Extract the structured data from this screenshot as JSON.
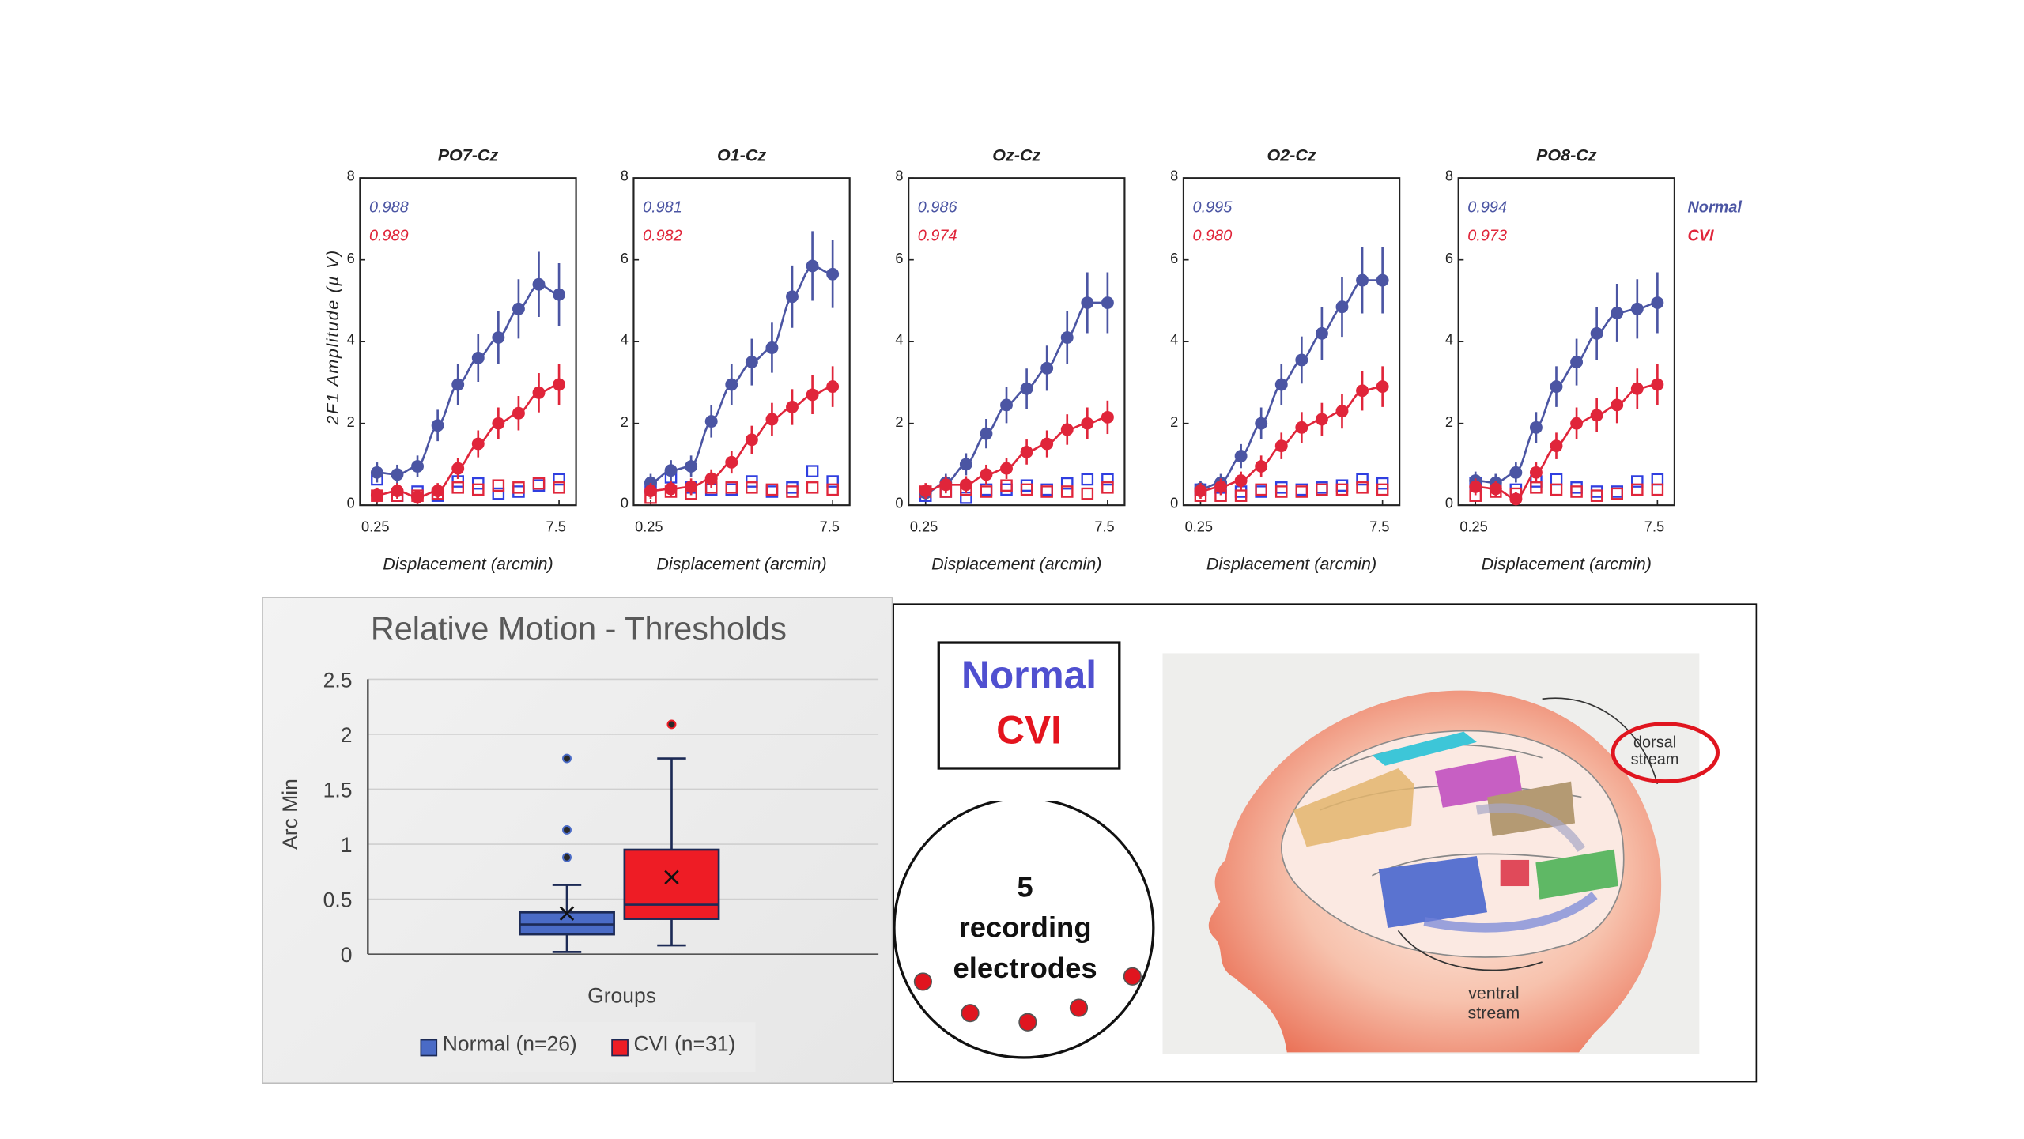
{
  "colors": {
    "normal": "#4b55a3",
    "cvi": "#e0253a",
    "normal_box": "#4a6bc6",
    "cvi_box": "#ee1c25"
  },
  "ylabel": "2F1 Amplitude (µ V)",
  "chart_data": [
    {
      "type": "line",
      "title": "PO7-Cz",
      "xlabel": "Displacement (arcmin)",
      "ylabel": "2F1 Amplitude (µ V)",
      "x_tick_labels": [
        "0.25",
        "7.5"
      ],
      "ylim": [
        0,
        8
      ],
      "y_ticks": [
        "0",
        "2",
        "4",
        "6",
        "8"
      ],
      "x_index": [
        1,
        2,
        3,
        4,
        5,
        6,
        7,
        8,
        9,
        10,
        11
      ],
      "r2": {
        "Normal": "0.988",
        "CVI": "0.989"
      },
      "series": [
        {
          "name": "Normal",
          "values": [
            0.8,
            0.75,
            0.95,
            1.95,
            2.95,
            3.6,
            4.1,
            4.8,
            5.4,
            5.15,
            null
          ]
        },
        {
          "name": "CVI",
          "values": [
            0.25,
            0.35,
            0.2,
            0.35,
            0.9,
            1.5,
            2.0,
            2.25,
            2.75,
            2.95,
            null
          ]
        },
        {
          "name": "Normal noise",
          "values": [
            0.6,
            0.2,
            0.3,
            0.2,
            0.55,
            0.5,
            0.25,
            0.3,
            0.45,
            0.6,
            null
          ]
        },
        {
          "name": "CVI noise",
          "values": [
            0.2,
            0.2,
            0.2,
            0.25,
            0.4,
            0.35,
            0.45,
            0.4,
            0.5,
            0.4,
            null
          ]
        }
      ]
    },
    {
      "type": "line",
      "title": "O1-Cz",
      "xlabel": "Displacement (arcmin)",
      "x_tick_labels": [
        "0.25",
        "7.5"
      ],
      "ylim": [
        0,
        8
      ],
      "y_ticks": [
        "0",
        "2",
        "4",
        "6",
        "8"
      ],
      "r2": {
        "Normal": "0.981",
        "CVI": "0.982"
      },
      "series": [
        {
          "name": "Normal",
          "values": [
            0.55,
            0.85,
            0.95,
            2.05,
            2.95,
            3.5,
            3.85,
            5.1,
            5.85,
            5.65
          ]
        },
        {
          "name": "CVI",
          "values": [
            0.35,
            0.4,
            0.45,
            0.65,
            1.05,
            1.6,
            2.1,
            2.4,
            2.7,
            2.9
          ]
        },
        {
          "name": "Normal noise",
          "values": [
            0.4,
            0.65,
            0.4,
            0.35,
            0.35,
            0.55,
            0.3,
            0.4,
            0.8,
            0.55
          ]
        },
        {
          "name": "CVI noise",
          "values": [
            0.15,
            0.3,
            0.25,
            0.4,
            0.4,
            0.4,
            0.35,
            0.3,
            0.4,
            0.35
          ]
        }
      ]
    },
    {
      "type": "line",
      "title": "Oz-Cz",
      "xlabel": "Displacement (arcmin)",
      "x_tick_labels": [
        "0.25",
        "7.5"
      ],
      "ylim": [
        0,
        8
      ],
      "y_ticks": [
        "0",
        "2",
        "4",
        "6",
        "8"
      ],
      "r2": {
        "Normal": "0.986",
        "CVI": "0.974"
      },
      "series": [
        {
          "name": "Normal",
          "values": [
            0.3,
            0.55,
            1.0,
            1.75,
            2.45,
            2.85,
            3.35,
            4.1,
            4.95,
            4.95
          ]
        },
        {
          "name": "CVI",
          "values": [
            0.35,
            0.5,
            0.5,
            0.75,
            0.9,
            1.3,
            1.5,
            1.85,
            2.0,
            2.15
          ]
        },
        {
          "name": "Normal noise",
          "values": [
            0.2,
            0.3,
            0.15,
            0.35,
            0.35,
            0.45,
            0.35,
            0.5,
            0.6,
            0.6
          ]
        },
        {
          "name": "CVI noise",
          "values": [
            0.3,
            0.3,
            0.35,
            0.3,
            0.45,
            0.35,
            0.3,
            0.3,
            0.25,
            0.4
          ]
        }
      ]
    },
    {
      "type": "line",
      "title": "O2-Cz",
      "xlabel": "Displacement (arcmin)",
      "x_tick_labels": [
        "0.25",
        "7.5"
      ],
      "ylim": [
        0,
        8
      ],
      "y_ticks": [
        "0",
        "2",
        "4",
        "6",
        "8"
      ],
      "r2": {
        "Normal": "0.995",
        "CVI": "0.980"
      },
      "series": [
        {
          "name": "Normal",
          "values": [
            0.4,
            0.55,
            1.2,
            2.0,
            2.95,
            3.55,
            4.2,
            4.85,
            5.5,
            5.5
          ]
        },
        {
          "name": "CVI",
          "values": [
            0.35,
            0.45,
            0.6,
            0.95,
            1.45,
            1.9,
            2.1,
            2.3,
            2.8,
            2.9
          ]
        },
        {
          "name": "Normal noise",
          "values": [
            0.35,
            0.4,
            0.3,
            0.3,
            0.4,
            0.35,
            0.4,
            0.45,
            0.6,
            0.5
          ]
        },
        {
          "name": "CVI noise",
          "values": [
            0.2,
            0.2,
            0.2,
            0.35,
            0.3,
            0.3,
            0.35,
            0.35,
            0.4,
            0.35
          ]
        }
      ]
    },
    {
      "type": "line",
      "title": "PO8-Cz",
      "xlabel": "Displacement (arcmin)",
      "x_tick_labels": [
        "0.25",
        "7.5"
      ],
      "ylim": [
        0,
        8
      ],
      "y_ticks": [
        "0",
        "2",
        "4",
        "6",
        "8"
      ],
      "r2": {
        "Normal": "0.994",
        "CVI": "0.973"
      },
      "series": [
        {
          "name": "Normal",
          "values": [
            0.6,
            0.55,
            0.8,
            1.9,
            2.9,
            3.5,
            4.2,
            4.7,
            4.8,
            4.95
          ]
        },
        {
          "name": "CVI",
          "values": [
            0.45,
            0.4,
            0.15,
            0.8,
            1.45,
            2.0,
            2.2,
            2.45,
            2.85,
            2.95
          ]
        },
        {
          "name": "Normal noise",
          "values": [
            0.5,
            0.45,
            0.35,
            0.55,
            0.6,
            0.4,
            0.3,
            0.3,
            0.55,
            0.6
          ]
        },
        {
          "name": "CVI noise",
          "values": [
            0.2,
            0.3,
            0.25,
            0.4,
            0.35,
            0.3,
            0.2,
            0.25,
            0.35,
            0.35
          ]
        }
      ]
    },
    {
      "type": "box",
      "title": "Relative Motion - Thresholds",
      "xlabel": "Groups",
      "ylabel": "Arc Min",
      "ylim": [
        0,
        2.5
      ],
      "y_ticks": [
        "0",
        "0.5",
        "1",
        "1.5",
        "2",
        "2.5"
      ],
      "series": [
        {
          "name": "Normal (n=26)",
          "min": 0.02,
          "q1": 0.18,
          "median": 0.27,
          "q3": 0.38,
          "max": 0.63,
          "mean": 0.37,
          "outliers": [
            0.88,
            1.13,
            1.78
          ]
        },
        {
          "name": "CVI (n=31)",
          "min": 0.08,
          "q1": 0.32,
          "median": 0.45,
          "q3": 0.95,
          "max": 1.78,
          "mean": 0.7,
          "outliers": [
            2.09
          ]
        }
      ]
    }
  ],
  "legend": {
    "normal": "Normal",
    "cvi": "CVI"
  },
  "info": {
    "normal": "Normal",
    "cvi": "CVI",
    "electrodes_line1": "5",
    "electrodes_line2": "recording",
    "electrodes_line3": "electrodes"
  },
  "brain": {
    "dorsal": "dorsal stream",
    "ventral": "ventral stream"
  }
}
